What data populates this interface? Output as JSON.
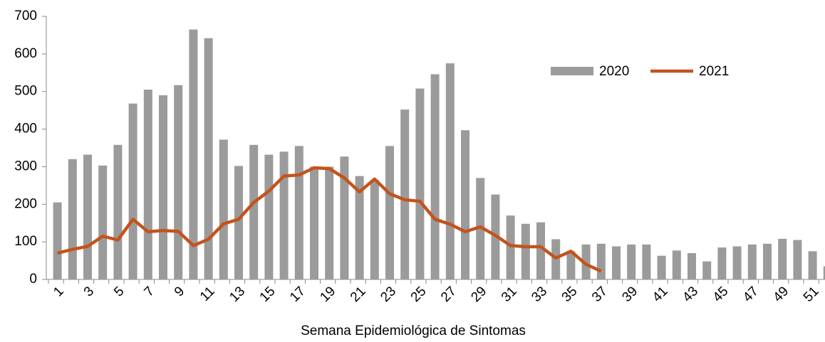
{
  "chart_data": {
    "type": "bar_line",
    "x_label": "Semana Epidemiológica de Sintomas",
    "categories": [
      "1",
      null,
      "3",
      null,
      "5",
      null,
      "7",
      null,
      "9",
      null,
      "11",
      null,
      "13",
      null,
      "15",
      null,
      "17",
      null,
      "19",
      null,
      "21",
      null,
      "23",
      null,
      "25",
      null,
      "27",
      null,
      "29",
      null,
      "31",
      null,
      "33",
      null,
      "35",
      null,
      "37",
      null,
      "39",
      null,
      "41",
      null,
      "43",
      null,
      "45",
      null,
      "47",
      null,
      "49",
      null,
      "51",
      null
    ],
    "series": [
      {
        "name": "2020",
        "type": "bar",
        "color": "#9b9b9b",
        "values": [
          205,
          320,
          332,
          303,
          358,
          468,
          505,
          490,
          517,
          665,
          642,
          372,
          302,
          358,
          332,
          340,
          355,
          300,
          300,
          327,
          275,
          265,
          355,
          452,
          508,
          546,
          575,
          397,
          270,
          226,
          170,
          148,
          152,
          107,
          75,
          93,
          95,
          88,
          93,
          93,
          63,
          77,
          70,
          48,
          85,
          88,
          93,
          95,
          108,
          105,
          75,
          35
        ]
      },
      {
        "name": "2021",
        "type": "line",
        "color": "#c4531c",
        "values": [
          70,
          80,
          88,
          115,
          105,
          160,
          127,
          130,
          128,
          90,
          107,
          148,
          160,
          205,
          235,
          275,
          278,
          297,
          295,
          270,
          233,
          267,
          228,
          212,
          208,
          160,
          147,
          127,
          140,
          117,
          90,
          87,
          87,
          57,
          75,
          40,
          22,
          null,
          null,
          null,
          null,
          null,
          null,
          null,
          null,
          null,
          null,
          null,
          null,
          null,
          null,
          null
        ]
      }
    ],
    "ylim": [
      0,
      700
    ],
    "yticks": [
      0,
      100,
      200,
      300,
      400,
      500,
      600,
      700
    ],
    "legend": "upper-right"
  }
}
